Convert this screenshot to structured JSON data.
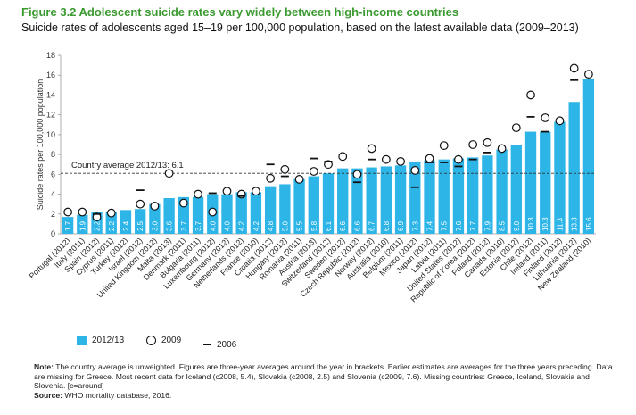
{
  "figure": {
    "title": "Figure 3.2  Adolescent suicide rates vary widely between high-income countries",
    "subtitle": "Suicide rates of adolescents aged 15–19 per 100,000 population, based on the latest available data (2009–2013)"
  },
  "chart_data": {
    "type": "bar",
    "ylabel": "Suicide rates per 100,000 population",
    "ylim": [
      0,
      18
    ],
    "yticks": [
      "0",
      "2",
      "4",
      "6",
      "8",
      "10",
      "12",
      "14",
      "16",
      "18"
    ],
    "grid": false,
    "legend_position": "bottom-left",
    "reference_line": {
      "label": "Country average 2012/13: 6.1",
      "value": 6.1
    },
    "categories": [
      "Portugal (2012)",
      "Italy (2011)",
      "Spain (2012)",
      "Cyprus (2011)",
      "Turkey (2012)",
      "Israel (2012)",
      "United Kingdom (2012)",
      "Malta (2013)",
      "Denmark (2011)",
      "Bulgaria (2011)",
      "Luxembourg (2012)",
      "Germany (2012)",
      "Netherlands (2012)",
      "France (2010)",
      "Croatia (2012)",
      "Hungary (2012)",
      "Romania (2011)",
      "Austria (2013)",
      "Switzerland (2012)",
      "Sweden (2012)",
      "Czech Republic (2012)",
      "Norway (2012)",
      "Australia (2010)",
      "Belgium (2011)",
      "Mexico (2012)",
      "Japan (2012)",
      "Latvia (2011)",
      "United States (2012)",
      "Republic of Korea (2012)",
      "Poland (2012)",
      "Canada (2010)",
      "Estonia (2012)",
      "Chile (2012)",
      "Ireland (2011)",
      "Finland (2012)",
      "Lithuania (2012)",
      "New Zealand (2010)"
    ],
    "series": [
      {
        "name": "2012/13",
        "type": "bar",
        "color": "#2db5e8",
        "values": [
          1.7,
          1.9,
          2.2,
          2.2,
          2.4,
          2.5,
          3.0,
          3.6,
          3.7,
          3.7,
          4.0,
          4.0,
          4.2,
          4.2,
          4.8,
          5.0,
          5.5,
          5.8,
          6.1,
          6.6,
          6.6,
          6.7,
          6.8,
          6.9,
          7.3,
          7.4,
          7.5,
          7.6,
          7.7,
          7.9,
          8.5,
          9.0,
          10.3,
          10.3,
          11.3,
          13.3,
          15.6
        ],
        "labels": [
          "1.7",
          "1.9",
          "2.2",
          "2.2",
          "2.4",
          "2.5",
          "3.0",
          "3.6",
          "3.7",
          "3.7",
          "4.0",
          "4.0",
          "4.2",
          "4.2",
          "4.8",
          "5.0",
          "5.5",
          "5.8",
          "6.1",
          "6.6",
          "6.6",
          "6.7",
          "6.8",
          "6.9",
          "7.3",
          "7.4",
          "7.5",
          "7.6",
          "7.7",
          "7.9",
          "8.5",
          "9.0",
          "10.3",
          "10.3",
          "11.3",
          "13.3",
          "15.6"
        ]
      },
      {
        "name": "2009",
        "type": "marker-circle",
        "values": [
          2.2,
          2.2,
          1.7,
          2.1,
          null,
          3.0,
          2.8,
          6.1,
          3.1,
          4.0,
          2.2,
          4.3,
          4.0,
          4.3,
          5.6,
          6.5,
          5.5,
          6.3,
          7.0,
          7.8,
          6.0,
          8.6,
          7.5,
          7.3,
          6.4,
          7.6,
          8.9,
          7.5,
          9.0,
          9.2,
          8.6,
          10.7,
          14.0,
          11.7,
          11.4,
          16.7,
          16.1
        ]
      },
      {
        "name": "2006",
        "type": "marker-dash",
        "values": [
          null,
          null,
          2.0,
          null,
          null,
          4.4,
          null,
          null,
          null,
          null,
          4.1,
          null,
          3.8,
          null,
          7.0,
          5.8,
          null,
          7.6,
          7.3,
          null,
          5.2,
          7.5,
          null,
          null,
          4.7,
          7.2,
          7.2,
          6.8,
          7.5,
          8.2,
          null,
          null,
          11.8,
          10.3,
          null,
          15.5,
          null
        ]
      }
    ]
  },
  "legend": {
    "bar_label": "2012/13",
    "circle_label": "2009",
    "dash_label": "2006"
  },
  "notes": {
    "note_label": "Note:",
    "note_text": " The country average is unweighted. Figures are three-year averages around the year in brackets. Earlier estimates are averages for the three years preceding. Data are missing for Greece. Most recent data for Iceland (c2008, 5.4), Slovakia (c2008, 2.5) and Slovenia (c2009, 7.6). Missing countries: Greece, Iceland, Slovakia and Slovenia. [c=around]",
    "source_label": "Source:",
    "source_text": " WHO mortality database, 2016."
  }
}
